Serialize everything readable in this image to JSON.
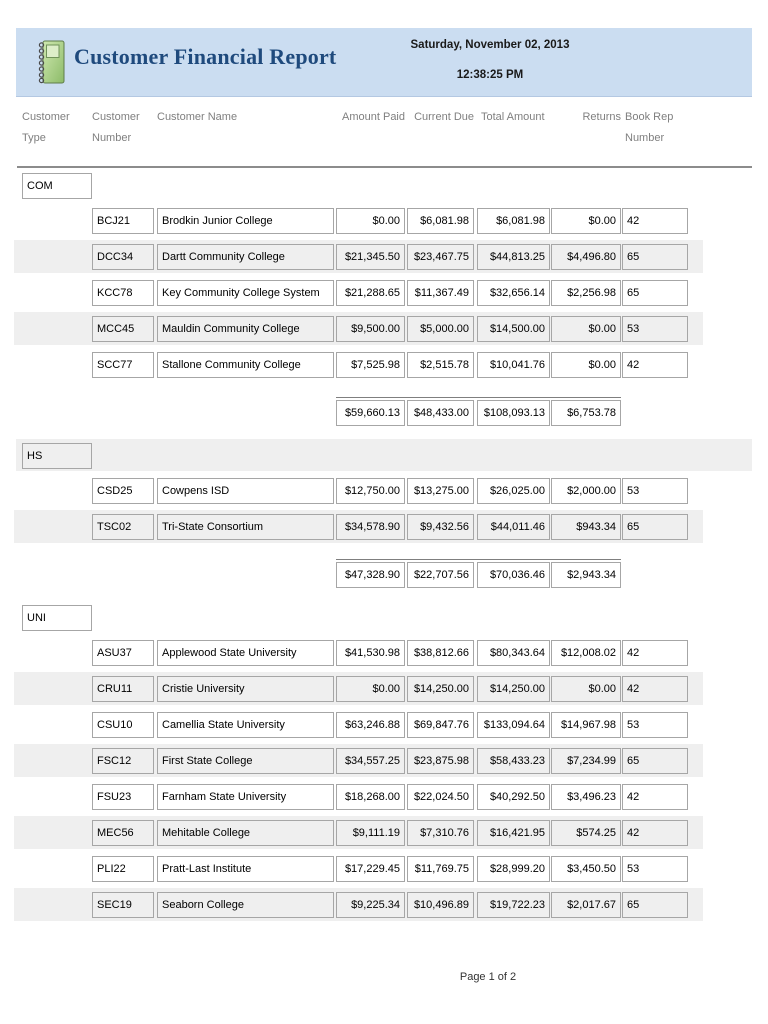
{
  "report": {
    "title": "Customer Financial Report",
    "date": "Saturday, November 02, 2013",
    "time": "12:38:25 PM",
    "icon": "notebook-icon"
  },
  "columns": [
    {
      "key": "type",
      "lines": [
        "Customer",
        "Type"
      ]
    },
    {
      "key": "number",
      "lines": [
        "Customer",
        "Number"
      ]
    },
    {
      "key": "name",
      "lines": [
        "Customer Name"
      ]
    },
    {
      "key": "paid",
      "lines": [
        "Amount Paid"
      ]
    },
    {
      "key": "due",
      "lines": [
        "Current Due"
      ]
    },
    {
      "key": "total",
      "lines": [
        "Total Amount"
      ]
    },
    {
      "key": "returns",
      "lines": [
        "Returns"
      ]
    },
    {
      "key": "rep",
      "lines": [
        "Book Rep",
        "Number"
      ]
    }
  ],
  "groups": [
    {
      "type": "COM",
      "rows": [
        {
          "number": "BCJ21",
          "name": "Brodkin Junior College",
          "paid": "$0.00",
          "due": "$6,081.98",
          "total": "$6,081.98",
          "returns": "$0.00",
          "rep": "42"
        },
        {
          "number": "DCC34",
          "name": "Dartt Community College",
          "paid": "$21,345.50",
          "due": "$23,467.75",
          "total": "$44,813.25",
          "returns": "$4,496.80",
          "rep": "65"
        },
        {
          "number": "KCC78",
          "name": "Key Community College System",
          "paid": "$21,288.65",
          "due": "$11,367.49",
          "total": "$32,656.14",
          "returns": "$2,256.98",
          "rep": "65"
        },
        {
          "number": "MCC45",
          "name": "Mauldin Community College",
          "paid": "$9,500.00",
          "due": "$5,000.00",
          "total": "$14,500.00",
          "returns": "$0.00",
          "rep": "53"
        },
        {
          "number": "SCC77",
          "name": "Stallone Community College",
          "paid": "$7,525.98",
          "due": "$2,515.78",
          "total": "$10,041.76",
          "returns": "$0.00",
          "rep": "42"
        }
      ],
      "subtotals": {
        "paid": "$59,660.13",
        "due": "$48,433.00",
        "total": "$108,093.13",
        "returns": "$6,753.78"
      }
    },
    {
      "type": "HS",
      "rows": [
        {
          "number": "CSD25",
          "name": "Cowpens ISD",
          "paid": "$12,750.00",
          "due": "$13,275.00",
          "total": "$26,025.00",
          "returns": "$2,000.00",
          "rep": "53"
        },
        {
          "number": "TSC02",
          "name": "Tri-State Consortium",
          "paid": "$34,578.90",
          "due": "$9,432.56",
          "total": "$44,011.46",
          "returns": "$943.34",
          "rep": "65"
        }
      ],
      "subtotals": {
        "paid": "$47,328.90",
        "due": "$22,707.56",
        "total": "$70,036.46",
        "returns": "$2,943.34"
      }
    },
    {
      "type": "UNI",
      "rows": [
        {
          "number": "ASU37",
          "name": "Applewood State University",
          "paid": "$41,530.98",
          "due": "$38,812.66",
          "total": "$80,343.64",
          "returns": "$12,008.02",
          "rep": "42"
        },
        {
          "number": "CRU11",
          "name": "Cristie University",
          "paid": "$0.00",
          "due": "$14,250.00",
          "total": "$14,250.00",
          "returns": "$0.00",
          "rep": "42"
        },
        {
          "number": "CSU10",
          "name": "Camellia State University",
          "paid": "$63,246.88",
          "due": "$69,847.76",
          "total": "$133,094.64",
          "returns": "$14,967.98",
          "rep": "53"
        },
        {
          "number": "FSC12",
          "name": "First State College",
          "paid": "$34,557.25",
          "due": "$23,875.98",
          "total": "$58,433.23",
          "returns": "$7,234.99",
          "rep": "65"
        },
        {
          "number": "FSU23",
          "name": "Farnham State University",
          "paid": "$18,268.00",
          "due": "$22,024.50",
          "total": "$40,292.50",
          "returns": "$3,496.23",
          "rep": "42"
        },
        {
          "number": "MEC56",
          "name": "Mehitable College",
          "paid": "$9,111.19",
          "due": "$7,310.76",
          "total": "$16,421.95",
          "returns": "$574.25",
          "rep": "42"
        },
        {
          "number": "PLI22",
          "name": "Pratt-Last Institute",
          "paid": "$17,229.45",
          "due": "$11,769.75",
          "total": "$28,999.20",
          "returns": "$3,450.50",
          "rep": "53"
        },
        {
          "number": "SEC19",
          "name": "Seaborn College",
          "paid": "$9,225.34",
          "due": "$10,496.89",
          "total": "$19,722.23",
          "returns": "$2,017.67",
          "rep": "65"
        }
      ],
      "subtotals": null
    }
  ],
  "footer": {
    "page_label": "Page 1 of 2"
  },
  "colors": {
    "header_bg": "#cbddf1",
    "title_text": "#1f4a7d",
    "stripe": "#efefef",
    "box_border": "#a6a6a6",
    "column_header_text": "#7f7f7f",
    "icon_green_light": "#cfe8b0",
    "icon_green_dark": "#8cbb68"
  }
}
